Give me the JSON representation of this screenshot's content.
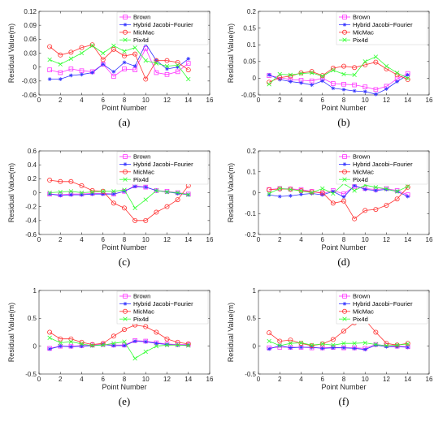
{
  "chart_data": [
    {
      "type": "line",
      "caption": "(a)",
      "xlabel": "Point Number",
      "ylabel": "Residual Value(m)",
      "xlim": [
        0,
        16
      ],
      "xticks": [
        "0",
        "2",
        "4",
        "6",
        "8",
        "10",
        "12",
        "14",
        "16"
      ],
      "ylim": [
        -0.06,
        0.12
      ],
      "yticks": [
        "-0.06",
        "-0.03",
        "0",
        "0.03",
        "0.06",
        "0.09",
        "0.12"
      ],
      "x": [
        1,
        2,
        3,
        4,
        5,
        6,
        7,
        8,
        9,
        10,
        11,
        12,
        13,
        14
      ],
      "series": [
        {
          "name": "Brown",
          "values": [
            -0.006,
            -0.012,
            -0.004,
            -0.008,
            -0.01,
            0.006,
            -0.02,
            -0.004,
            -0.006,
            0.04,
            -0.012,
            -0.016,
            -0.01,
            0.008
          ]
        },
        {
          "name": "Hybrid Jacobi−Fourier",
          "values": [
            -0.026,
            -0.026,
            -0.018,
            -0.016,
            -0.012,
            0.006,
            -0.01,
            0.01,
            0.002,
            0.05,
            0.014,
            -0.004,
            0.0,
            0.018
          ]
        },
        {
          "name": "MicMac",
          "values": [
            0.044,
            0.026,
            0.032,
            0.042,
            0.048,
            0.016,
            0.038,
            0.024,
            0.028,
            -0.026,
            0.014,
            0.014,
            0.01,
            -0.006
          ]
        },
        {
          "name": "Pix4d",
          "values": [
            0.016,
            0.006,
            0.018,
            0.03,
            0.046,
            0.03,
            0.046,
            0.034,
            0.042,
            0.014,
            0.008,
            0.002,
            0.004,
            -0.026
          ]
        }
      ]
    },
    {
      "type": "line",
      "caption": "(b)",
      "xlabel": "Point Number",
      "ylabel": "Residual Value(m)",
      "xlim": [
        0,
        16
      ],
      "xticks": [
        "0",
        "2",
        "4",
        "6",
        "8",
        "10",
        "12",
        "14",
        "16"
      ],
      "ylim": [
        -0.05,
        0.2
      ],
      "yticks": [
        "-0.05",
        "0",
        "0.05",
        "0.1",
        "0.15",
        "0.2"
      ],
      "x": [
        1,
        2,
        3,
        4,
        5,
        6,
        7,
        8,
        9,
        10,
        11,
        12,
        13,
        14
      ],
      "series": [
        {
          "name": "Brown",
          "values": [
            0.008,
            0.002,
            -0.004,
            -0.006,
            -0.008,
            0.0,
            -0.016,
            -0.018,
            -0.02,
            -0.026,
            -0.034,
            -0.024,
            -0.002,
            0.014
          ]
        },
        {
          "name": "Hybrid Jacobi−Fourier",
          "values": [
            0.01,
            -0.004,
            -0.01,
            -0.014,
            -0.02,
            -0.008,
            -0.03,
            -0.034,
            -0.038,
            -0.04,
            -0.048,
            -0.032,
            -0.01,
            0.01
          ]
        },
        {
          "name": "MicMac",
          "values": [
            -0.012,
            0.002,
            0.006,
            0.016,
            0.02,
            0.008,
            0.03,
            0.036,
            0.032,
            0.04,
            0.048,
            0.028,
            0.01,
            -0.004
          ]
        },
        {
          "name": "Pix4d",
          "values": [
            -0.018,
            0.012,
            0.01,
            0.014,
            0.016,
            0.006,
            0.024,
            0.012,
            0.01,
            0.05,
            0.064,
            0.036,
            0.016,
            0.0
          ]
        }
      ]
    },
    {
      "type": "line",
      "caption": "(c)",
      "xlabel": "Point Number",
      "ylabel": "Residual Value(m)",
      "xlim": [
        0,
        16
      ],
      "xticks": [
        "0",
        "2",
        "4",
        "6",
        "8",
        "10",
        "12",
        "14",
        "16"
      ],
      "ylim": [
        -0.6,
        0.6
      ],
      "yticks": [
        "-0.6",
        "-0.4",
        "-0.2",
        "0",
        "0.2",
        "0.4",
        "0.6"
      ],
      "x": [
        1,
        2,
        3,
        4,
        5,
        6,
        7,
        8,
        9,
        10,
        11,
        12,
        13,
        14
      ],
      "series": [
        {
          "name": "Brown",
          "values": [
            -0.02,
            -0.03,
            -0.02,
            -0.02,
            -0.01,
            -0.01,
            -0.02,
            0.02,
            0.1,
            0.08,
            0.03,
            0.02,
            0.0,
            -0.02
          ]
        },
        {
          "name": "Hybrid Jacobi−Fourier",
          "values": [
            -0.02,
            -0.04,
            -0.03,
            -0.03,
            -0.02,
            -0.02,
            -0.02,
            0.02,
            0.09,
            0.08,
            0.03,
            0.01,
            -0.01,
            -0.03
          ]
        },
        {
          "name": "MicMac",
          "values": [
            0.18,
            0.16,
            0.16,
            0.1,
            0.03,
            0.02,
            -0.15,
            -0.22,
            -0.4,
            -0.4,
            -0.28,
            -0.2,
            -0.1,
            0.1
          ]
        },
        {
          "name": "Pix4d",
          "values": [
            0.0,
            0.01,
            0.02,
            0.0,
            0.01,
            0.02,
            0.02,
            0.04,
            -0.22,
            -0.1,
            0.03,
            0.01,
            0.0,
            -0.03
          ]
        }
      ]
    },
    {
      "type": "line",
      "caption": "(d)",
      "xlabel": "Point Number",
      "ylabel": "Residual Value(m)",
      "xlim": [
        0,
        16
      ],
      "xticks": [
        "0",
        "2",
        "4",
        "6",
        "8",
        "10",
        "12",
        "14",
        "16"
      ],
      "ylim": [
        -0.2,
        0.2
      ],
      "yticks": [
        "-0.2",
        "-0.1",
        "0",
        "0.1",
        "0.2"
      ],
      "x": [
        1,
        2,
        3,
        4,
        5,
        6,
        7,
        8,
        9,
        10,
        11,
        12,
        13,
        14
      ],
      "series": [
        {
          "name": "Brown",
          "values": [
            0.015,
            0.02,
            0.018,
            0.015,
            0.006,
            -0.004,
            0.01,
            -0.006,
            0.03,
            0.02,
            0.015,
            0.02,
            0.01,
            -0.01
          ]
        },
        {
          "name": "Hybrid Jacobi−Fourier",
          "values": [
            -0.01,
            -0.018,
            -0.015,
            -0.008,
            -0.004,
            -0.01,
            0.006,
            -0.02,
            0.034,
            0.016,
            0.01,
            0.016,
            0.006,
            -0.018
          ]
        },
        {
          "name": "MicMac",
          "values": [
            0.014,
            0.018,
            0.016,
            0.01,
            0.004,
            0.0,
            -0.05,
            -0.04,
            -0.125,
            -0.085,
            -0.08,
            -0.06,
            -0.03,
            0.026
          ]
        },
        {
          "name": "Pix4d",
          "values": [
            -0.004,
            0.02,
            0.016,
            0.008,
            0.0,
            0.02,
            -0.004,
            0.044,
            0.01,
            0.036,
            0.026,
            0.018,
            0.006,
            0.03
          ]
        }
      ]
    },
    {
      "type": "line",
      "caption": "(e)",
      "xlabel": "Point Number",
      "ylabel": "Residual Value(m)",
      "xlim": [
        0,
        16
      ],
      "xticks": [
        "0",
        "2",
        "4",
        "6",
        "8",
        "10",
        "12",
        "14",
        "16"
      ],
      "ylim": [
        -0.5,
        1
      ],
      "yticks": [
        "-0.5",
        "0",
        "0.5",
        "1"
      ],
      "x": [
        1,
        2,
        3,
        4,
        5,
        6,
        7,
        8,
        9,
        10,
        11,
        12,
        13,
        14
      ],
      "series": [
        {
          "name": "Brown",
          "values": [
            -0.04,
            0.0,
            0.0,
            0.01,
            0.02,
            0.03,
            0.02,
            0.02,
            0.1,
            0.09,
            0.06,
            0.04,
            0.03,
            0.03
          ]
        },
        {
          "name": "Hybrid Jacobi−Fourier",
          "values": [
            -0.05,
            0.0,
            -0.01,
            0.0,
            0.01,
            0.03,
            0.01,
            0.01,
            0.09,
            0.08,
            0.05,
            0.03,
            0.02,
            0.02
          ]
        },
        {
          "name": "MicMac",
          "values": [
            0.25,
            0.13,
            0.13,
            0.07,
            0.03,
            0.05,
            0.18,
            0.3,
            0.38,
            0.35,
            0.25,
            0.13,
            0.07,
            0.04
          ]
        },
        {
          "name": "Pix4d",
          "values": [
            0.15,
            0.06,
            0.08,
            0.04,
            0.01,
            0.02,
            0.05,
            0.08,
            -0.22,
            -0.1,
            0.0,
            0.02,
            0.02,
            0.01
          ]
        }
      ]
    },
    {
      "type": "line",
      "caption": "(f)",
      "xlabel": "Point Number",
      "ylabel": "Residual Value(m)",
      "xlim": [
        0,
        16
      ],
      "xticks": [
        "0",
        "2",
        "4",
        "6",
        "8",
        "10",
        "12",
        "14",
        "16"
      ],
      "ylim": [
        -0.5,
        1
      ],
      "yticks": [
        "-0.5",
        "0",
        "0.5",
        "1"
      ],
      "x": [
        1,
        2,
        3,
        4,
        5,
        6,
        7,
        8,
        9,
        10,
        11,
        12,
        13,
        14
      ],
      "series": [
        {
          "name": "Brown",
          "values": [
            -0.03,
            -0.02,
            -0.02,
            -0.02,
            -0.03,
            -0.03,
            -0.02,
            -0.03,
            -0.03,
            -0.04,
            0.03,
            0.01,
            0.0,
            -0.01
          ]
        },
        {
          "name": "Hybrid Jacobi−Fourier",
          "values": [
            -0.05,
            0.01,
            -0.03,
            -0.02,
            -0.02,
            -0.04,
            -0.03,
            -0.03,
            -0.04,
            -0.06,
            0.02,
            -0.01,
            -0.01,
            -0.02
          ]
        },
        {
          "name": "MicMac",
          "values": [
            0.24,
            0.09,
            0.11,
            0.05,
            0.01,
            0.04,
            0.12,
            0.27,
            0.42,
            0.47,
            0.25,
            0.05,
            0.02,
            0.05
          ]
        },
        {
          "name": "Pix4d",
          "values": [
            0.09,
            0.01,
            0.05,
            0.06,
            0.02,
            0.04,
            0.02,
            0.05,
            0.05,
            0.06,
            0.03,
            0.01,
            0.02,
            0.04
          ]
        }
      ]
    }
  ],
  "style": {
    "series_colors": [
      "#ff33ff",
      "#3333ff",
      "#ff3333",
      "#33ff33"
    ],
    "series_markers": [
      "square",
      "asterisk",
      "circle",
      "cross"
    ],
    "axis_color": "#262626",
    "grid": false,
    "legend_position": "top-right"
  }
}
